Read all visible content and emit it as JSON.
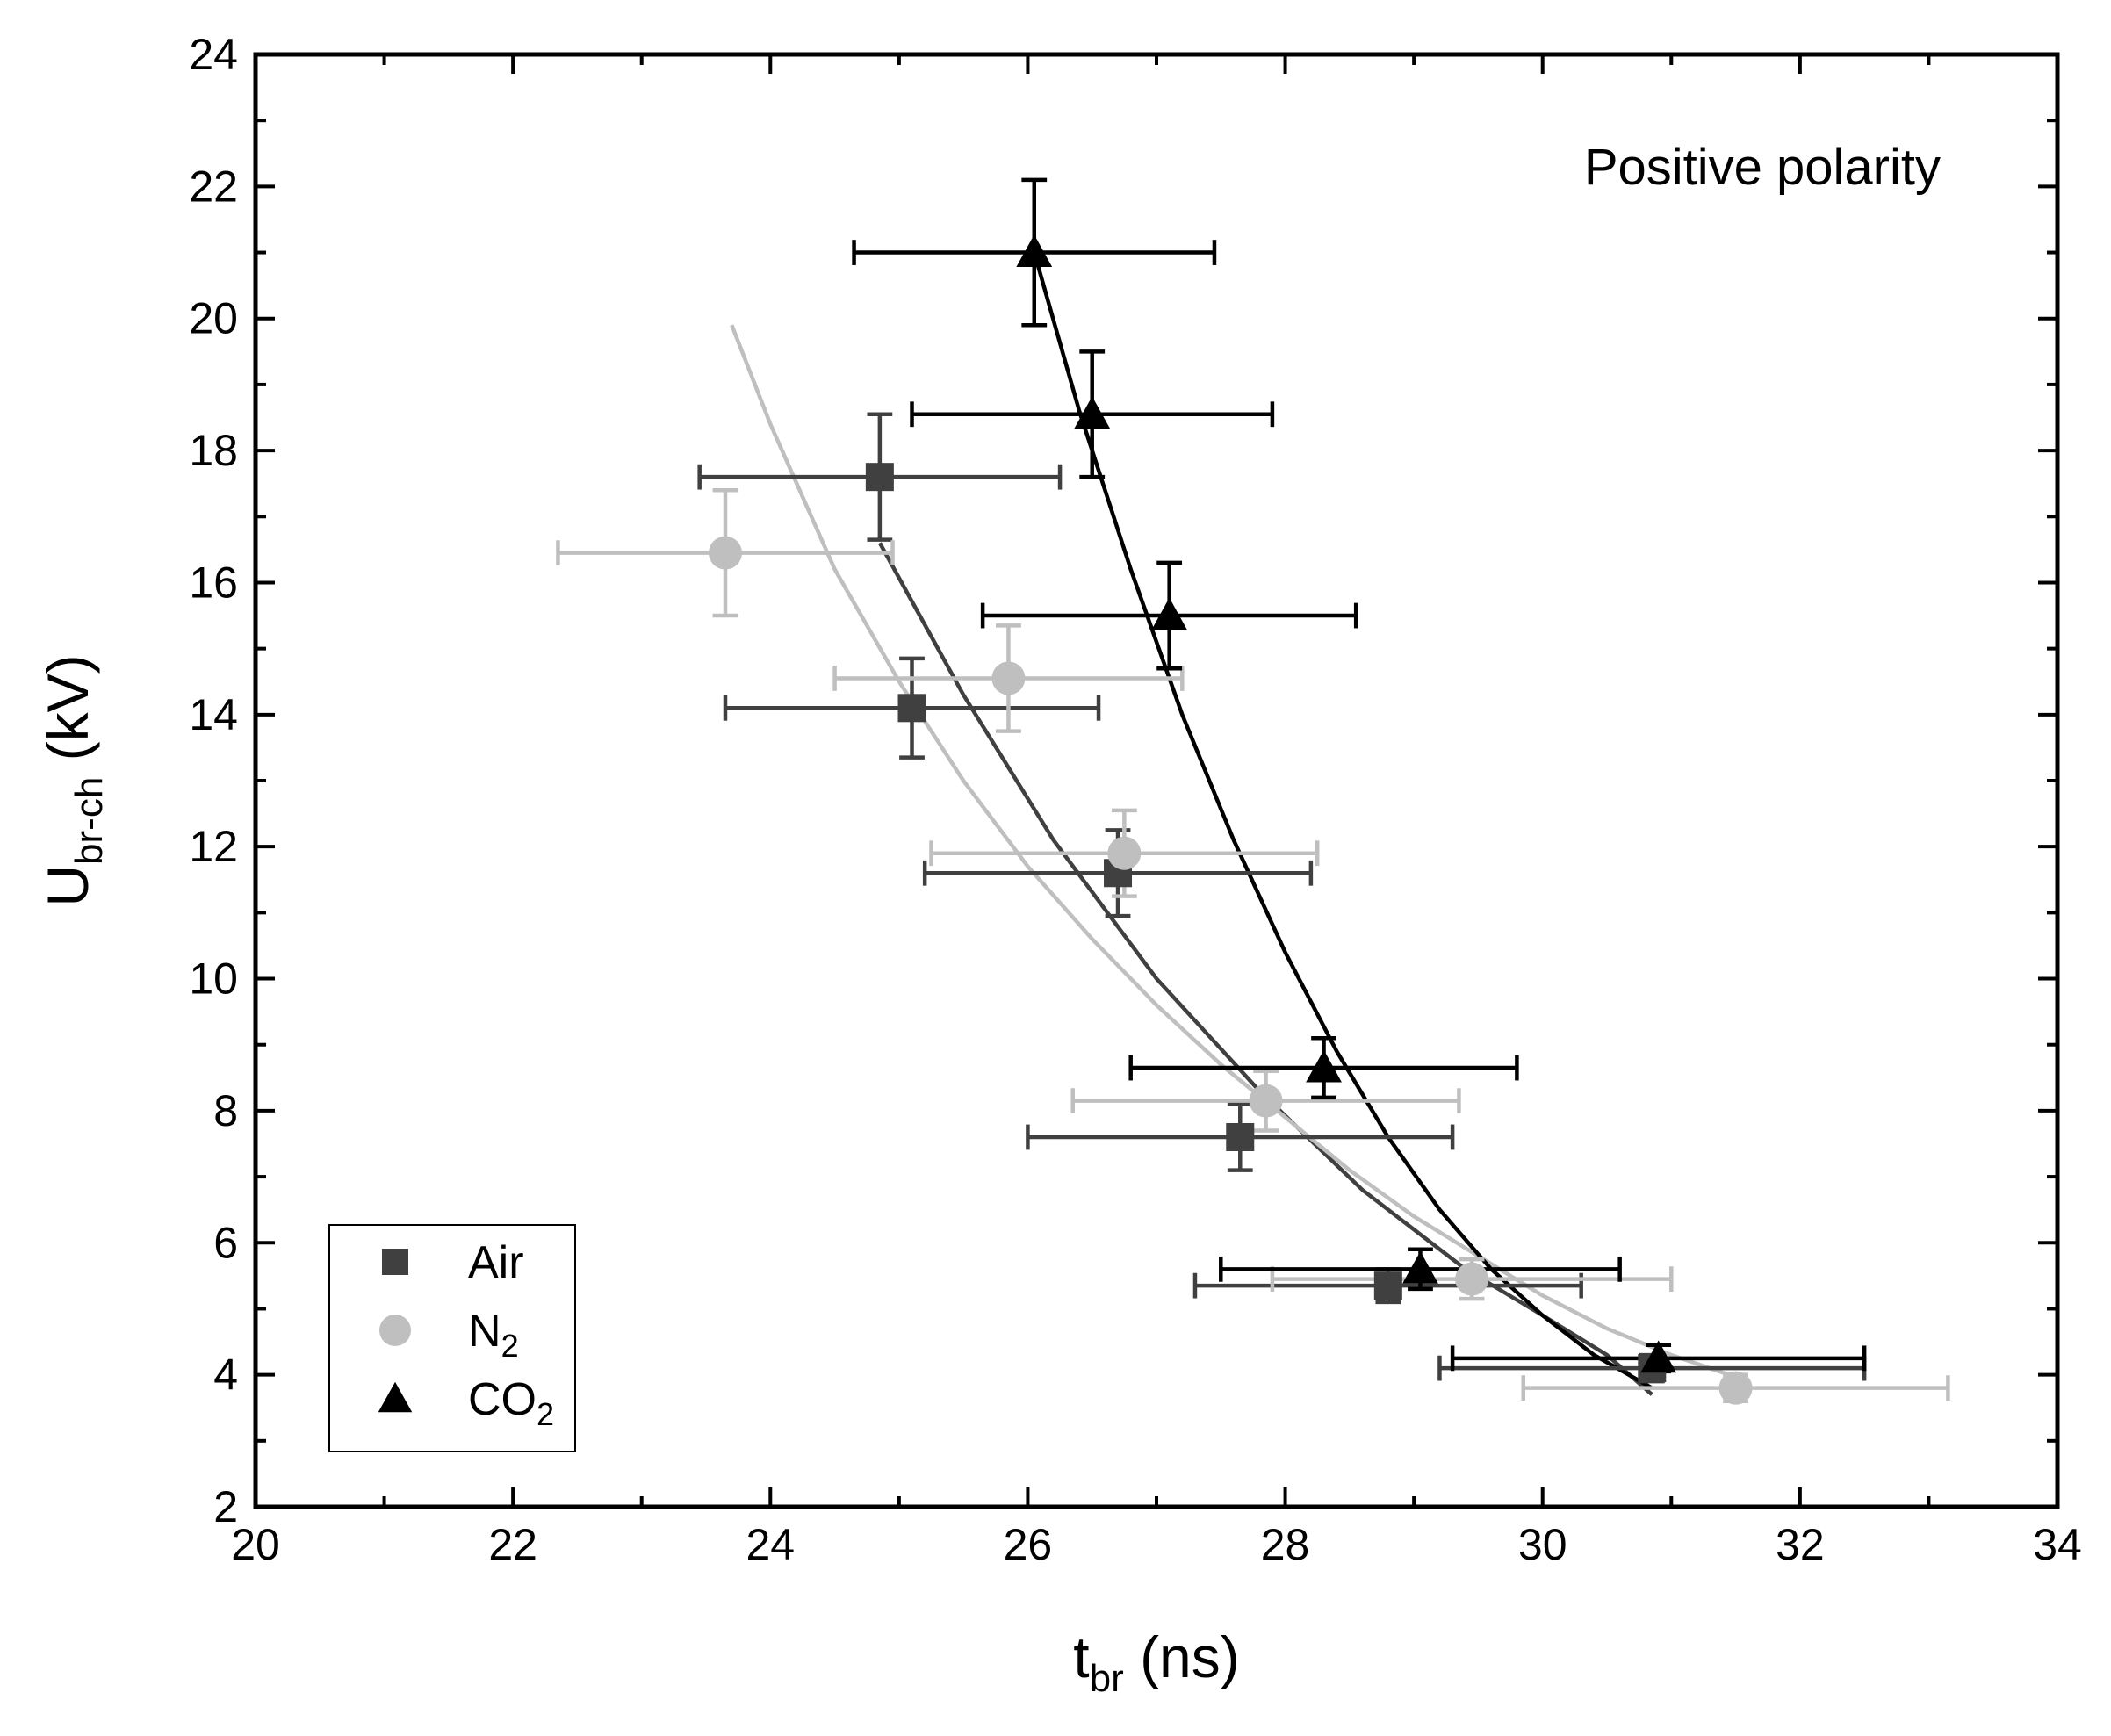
{
  "chart_data": {
    "type": "scatter",
    "title": "",
    "annotation": "Positive polarity",
    "xlabel": {
      "main": "t",
      "sub": "br",
      "rest": " (ns)"
    },
    "ylabel": {
      "main": "U",
      "sub": "br-ch",
      "rest": " (kV)"
    },
    "xlim": [
      20,
      34
    ],
    "ylim": [
      2,
      24
    ],
    "x_ticks": [
      20,
      22,
      24,
      26,
      28,
      30,
      32,
      34
    ],
    "y_ticks": [
      2,
      4,
      6,
      8,
      10,
      12,
      14,
      16,
      18,
      20,
      22,
      24
    ],
    "legend_position": "bottom-left",
    "series": [
      {
        "name": "Air",
        "legend": {
          "main": "Air",
          "sub": ""
        },
        "marker": "square",
        "color": "#404040",
        "points": [
          {
            "x": 24.85,
            "y": 17.6,
            "xerr": 1.4,
            "yerr": 0.95
          },
          {
            "x": 25.1,
            "y": 14.1,
            "xerr": 1.45,
            "yerr": 0.75
          },
          {
            "x": 26.7,
            "y": 11.6,
            "xerr": 1.5,
            "yerr": 0.65
          },
          {
            "x": 27.65,
            "y": 7.6,
            "xerr": 1.65,
            "yerr": 0.5
          },
          {
            "x": 28.8,
            "y": 5.35,
            "xerr": 1.5,
            "yerr": 0.25
          },
          {
            "x": 30.85,
            "y": 4.1,
            "xerr": 1.65,
            "yerr": 0.2
          }
        ],
        "fit": {
          "x": [
            24.85,
            25.5,
            26.2,
            27.0,
            27.8,
            28.6,
            29.4,
            30.0,
            30.5,
            30.85
          ],
          "y": [
            16.6,
            14.3,
            12.1,
            10.0,
            8.3,
            6.8,
            5.6,
            4.9,
            4.3,
            3.7
          ]
        }
      },
      {
        "name": "N2",
        "legend": {
          "main": "N",
          "sub": "2"
        },
        "marker": "circle",
        "color": "#bfbfbf",
        "points": [
          {
            "x": 23.65,
            "y": 16.45,
            "xerr": 1.3,
            "yerr": 0.95
          },
          {
            "x": 25.85,
            "y": 14.55,
            "xerr": 1.35,
            "yerr": 0.8
          },
          {
            "x": 26.75,
            "y": 11.9,
            "xerr": 1.5,
            "yerr": 0.65
          },
          {
            "x": 27.85,
            "y": 8.15,
            "xerr": 1.5,
            "yerr": 0.45
          },
          {
            "x": 29.45,
            "y": 5.45,
            "xerr": 1.55,
            "yerr": 0.3
          },
          {
            "x": 31.5,
            "y": 3.8,
            "xerr": 1.65,
            "yerr": 0.2
          }
        ],
        "fit": {
          "x": [
            23.7,
            24.0,
            24.5,
            25.0,
            25.5,
            26.0,
            26.5,
            27.0,
            27.5,
            28.0,
            28.5,
            29.0,
            29.5,
            30.0,
            30.5,
            31.0,
            31.6
          ],
          "y": [
            19.9,
            18.4,
            16.2,
            14.5,
            13.0,
            11.7,
            10.6,
            9.6,
            8.7,
            7.9,
            7.1,
            6.4,
            5.8,
            5.2,
            4.7,
            4.3,
            3.9
          ]
        }
      },
      {
        "name": "CO2",
        "legend": {
          "main": "CO",
          "sub": "2"
        },
        "marker": "triangle",
        "color": "#000000",
        "points": [
          {
            "x": 26.05,
            "y": 21.0,
            "xerr": 1.4,
            "yerr": 1.1
          },
          {
            "x": 26.5,
            "y": 18.55,
            "xerr": 1.4,
            "yerr": 0.95
          },
          {
            "x": 27.1,
            "y": 15.5,
            "xerr": 1.45,
            "yerr": 0.8
          },
          {
            "x": 28.3,
            "y": 8.65,
            "xerr": 1.5,
            "yerr": 0.45
          },
          {
            "x": 29.05,
            "y": 5.6,
            "xerr": 1.55,
            "yerr": 0.3
          },
          {
            "x": 30.9,
            "y": 4.25,
            "xerr": 1.6,
            "yerr": 0.2
          }
        ],
        "fit": {
          "x": [
            26.05,
            26.4,
            26.8,
            27.2,
            27.6,
            28.0,
            28.4,
            28.8,
            29.2,
            29.6,
            30.0,
            30.4,
            30.85
          ],
          "y": [
            21.0,
            18.6,
            16.2,
            14.0,
            12.1,
            10.4,
            8.9,
            7.6,
            6.5,
            5.6,
            4.9,
            4.3,
            3.8
          ]
        }
      }
    ]
  }
}
